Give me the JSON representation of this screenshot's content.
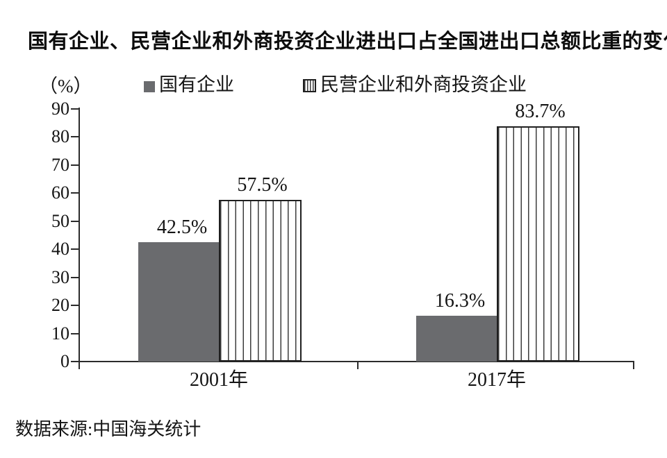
{
  "title": "国有企业、民营企业和外商投资企业进出口占全国进出口总额比重的变化",
  "unit_label": "（%）",
  "legend": [
    {
      "label": "国有企业",
      "swatch": "solid-gray-square-icon"
    },
    {
      "label": "民营企业和外商投资企业",
      "swatch": "vertical-stripes-square-icon"
    }
  ],
  "source": "数据来源:中国海关统计",
  "colors": {
    "bar_solid": "#6a6b6e",
    "bar_striped_line": "#3c3c3c",
    "bar_striped_bg": "#ffffff",
    "axis": "#2b2b2b",
    "text": "#141414"
  },
  "chart_data": {
    "type": "bar",
    "title": "国有企业、民营企业和外商投资企业进出口占全国进出口总额比重的变化",
    "categories": [
      "2001年",
      "2017年"
    ],
    "series": [
      {
        "name": "国有企业",
        "style": "solid",
        "values": [
          42.5,
          16.3
        ],
        "labels": [
          "42.5%",
          "16.3%"
        ]
      },
      {
        "name": "民营企业和外商投资企业",
        "style": "striped",
        "values": [
          57.5,
          83.7
        ],
        "labels": [
          "57.5%",
          "83.7%"
        ]
      }
    ],
    "ylabel": "（%）",
    "ylim": [
      0,
      90
    ],
    "ytick_interval": 10,
    "yticks": [
      "0",
      "10",
      "20",
      "30",
      "40",
      "50",
      "60",
      "70",
      "80",
      "90"
    ],
    "grid": false,
    "legend_position": "top",
    "annotations": [],
    "source_note": "数据来源:中国海关统计"
  }
}
